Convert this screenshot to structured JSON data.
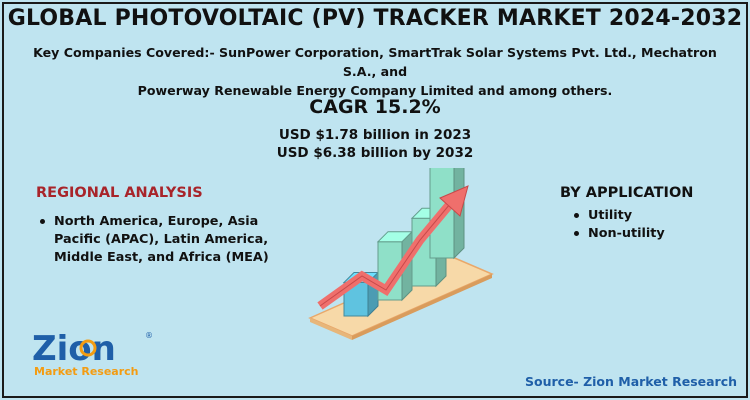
{
  "title": "GLOBAL PHOTOVOLTAIC (PV) TRACKER MARKET 2024-2032",
  "companies": {
    "line1": "Key Companies Covered:-  SunPower Corporation, SmartTrak Solar Systems Pvt. Ltd., Mechatron S.A., and",
    "line2": "Powerway Renewable Energy Company Limited and among others."
  },
  "cagr": "CAGR 15.2%",
  "usd": {
    "line1": "USD $1.78 billion in 2023",
    "line2": "USD $6.38 billion  by 2032"
  },
  "regional": {
    "heading": "REGIONAL ANALYSIS",
    "items": [
      "North America, Europe, Asia Pacific (APAC), Latin America, Middle East, and Africa (MEA)"
    ]
  },
  "application": {
    "heading": "BY APPLICATION",
    "items": [
      "Utility",
      "Non-utility"
    ]
  },
  "logo": {
    "word": "Zion",
    "sub": "Market Research",
    "mark": "®"
  },
  "source": "Source- Zion Market Research",
  "colors": {
    "background": "#bfe4f0",
    "regional_heading": "#a8242a",
    "source_text": "#1f5fa8",
    "arrow": "#ef6f6c",
    "bar_blue": "#5fc3e0",
    "bar_green": "#8fe0c8",
    "platform": "#f7d9a8"
  },
  "chart_data": {
    "type": "bar",
    "title": "",
    "xlabel": "",
    "ylabel": "",
    "categories": [
      "",
      "",
      "",
      ""
    ],
    "values": [
      1.78,
      3.1,
      3.6,
      6.38
    ],
    "ylim": [
      0,
      6.38
    ],
    "grid": false,
    "legend": "none",
    "trend_arrow": "rising"
  }
}
